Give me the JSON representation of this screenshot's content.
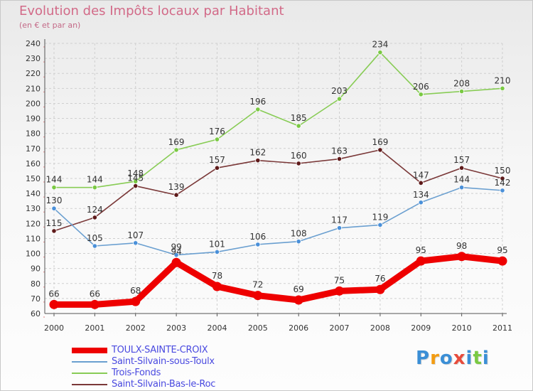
{
  "chart_data": {
    "type": "line",
    "title": "Evolution des Impôts locaux par Habitant",
    "subtitle": "(en € et par an)",
    "xlabel": "",
    "ylabel": "",
    "categories": [
      "2000",
      "2001",
      "2002",
      "2003",
      "2004",
      "2005",
      "2006",
      "2007",
      "2008",
      "2009",
      "2010",
      "2011"
    ],
    "ylim": [
      60,
      240
    ],
    "ytick_step": 10,
    "grid": true,
    "legend_position": "bottom-left",
    "series": [
      {
        "name": "Trois-Fonds",
        "color": "#88cc55",
        "marker_color": "#7ac943",
        "weight": "normal",
        "values": [
          144,
          144,
          148,
          169,
          176,
          196,
          185,
          203,
          234,
          206,
          208,
          210
        ]
      },
      {
        "name": "Saint-Silvain-Bas-le-Roc",
        "color": "#7a3838",
        "marker_color": "#5e1a1a",
        "weight": "normal",
        "values": [
          115,
          124,
          145,
          139,
          157,
          162,
          160,
          163,
          169,
          147,
          157,
          150
        ]
      },
      {
        "name": "Saint-Silvain-sous-Toulx",
        "color": "#6a9fd0",
        "marker_color": "#4a90d9",
        "weight": "normal",
        "values": [
          130,
          105,
          107,
          99,
          101,
          106,
          108,
          117,
          119,
          134,
          144,
          142
        ]
      },
      {
        "name": "TOULX-SAINTE-CROIX",
        "color": "#ee0000",
        "marker_color": "#ee0000",
        "weight": "bold",
        "values": [
          66,
          66,
          68,
          94,
          78,
          72,
          69,
          75,
          76,
          95,
          98,
          95
        ]
      }
    ]
  },
  "legend": {
    "items": [
      {
        "label": "TOULX-SAINTE-CROIX",
        "color": "#ee0000",
        "thickness": 8
      },
      {
        "label": "Saint-Silvain-sous-Toulx",
        "color": "#6a9fd0",
        "thickness": 2
      },
      {
        "label": "Trois-Fonds",
        "color": "#88cc55",
        "thickness": 2
      },
      {
        "label": "Saint-Silvain-Bas-le-Roc",
        "color": "#7a3838",
        "thickness": 2
      }
    ]
  },
  "brand": {
    "letters": [
      {
        "char": "P",
        "color": "#3b8fd6"
      },
      {
        "char": "r",
        "color": "#f39c12"
      },
      {
        "char": "o",
        "color": "#3b8fd6"
      },
      {
        "char": "x",
        "color": "#e74c3c"
      },
      {
        "char": "i",
        "color": "#3b8fd6"
      },
      {
        "char": "t",
        "color": "#7ac943"
      },
      {
        "char": "i",
        "color": "#3b8fd6"
      }
    ]
  }
}
